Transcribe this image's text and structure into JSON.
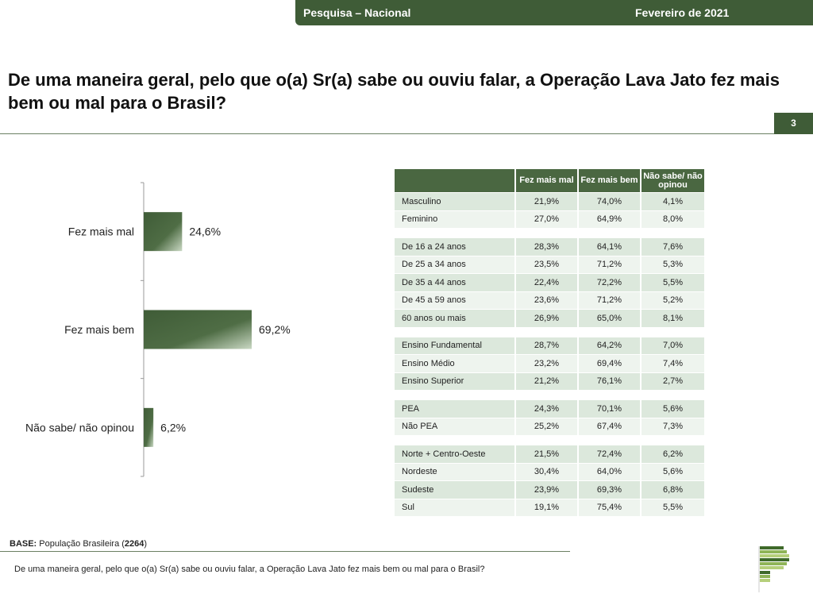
{
  "header": {
    "survey": "Pesquisa – Nacional",
    "date": "Fevereiro de 2021"
  },
  "title": "De uma maneira geral, pelo que o(a) Sr(a) sabe ou ouviu falar, a Operação Lava Jato fez mais bem ou mal para o Brasil?",
  "page_number": "3",
  "colors": {
    "brand": "#3f5c37",
    "bar": "#4a6741"
  },
  "chart_data": {
    "type": "bar",
    "orientation": "horizontal",
    "categories": [
      "Fez mais mal",
      "Fez mais bem",
      "Não sabe/ não opinou"
    ],
    "values": [
      24.6,
      69.2,
      6.2
    ],
    "labels": [
      "24,6%",
      "69,2%",
      "6,2%"
    ],
    "xlim": [
      0,
      100
    ]
  },
  "table": {
    "headers": [
      "",
      "Fez mais mal",
      "Fez mais bem",
      "Não sabe/ não opinou"
    ],
    "groups": [
      [
        [
          "Masculino",
          "21,9%",
          "74,0%",
          "4,1%"
        ],
        [
          "Feminino",
          "27,0%",
          "64,9%",
          "8,0%"
        ]
      ],
      [
        [
          "De 16 a 24 anos",
          "28,3%",
          "64,1%",
          "7,6%"
        ],
        [
          "De 25 a 34 anos",
          "23,5%",
          "71,2%",
          "5,3%"
        ],
        [
          "De 35 a 44 anos",
          "22,4%",
          "72,2%",
          "5,5%"
        ],
        [
          "De 45 a 59 anos",
          "23,6%",
          "71,2%",
          "5,2%"
        ],
        [
          "60 anos ou mais",
          "26,9%",
          "65,0%",
          "8,1%"
        ]
      ],
      [
        [
          "Ensino Fundamental",
          "28,7%",
          "64,2%",
          "7,0%"
        ],
        [
          "Ensino Médio",
          "23,2%",
          "69,4%",
          "7,4%"
        ],
        [
          "Ensino Superior",
          "21,2%",
          "76,1%",
          "2,7%"
        ]
      ],
      [
        [
          " PEA",
          "24,3%",
          "70,1%",
          "5,6%"
        ],
        [
          " Não PEA",
          "25,2%",
          "67,4%",
          "7,3%"
        ]
      ],
      [
        [
          "Norte + Centro-Oeste",
          "21,5%",
          "72,4%",
          "6,2%"
        ],
        [
          "Nordeste",
          "30,4%",
          "64,0%",
          "5,6%"
        ],
        [
          "Sudeste",
          "23,9%",
          "69,3%",
          "6,8%"
        ],
        [
          "Sul",
          "19,1%",
          "75,4%",
          "5,5%"
        ]
      ]
    ]
  },
  "base": {
    "label": "BASE:",
    "text": " População Brasileira (",
    "count": "2264",
    "close": ")"
  },
  "footer": "De uma maneira geral, pelo que o(a) Sr(a) sabe ou ouviu falar, a Operação Lava Jato fez mais bem ou mal para o Brasil?"
}
